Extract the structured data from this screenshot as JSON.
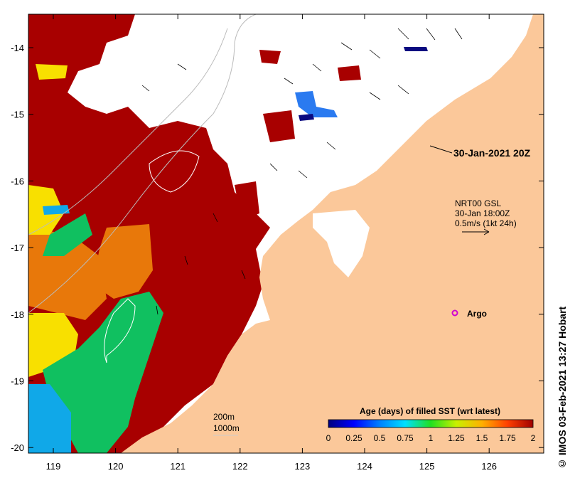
{
  "map": {
    "lon_ticks": [
      "119",
      "120",
      "121",
      "122",
      "123",
      "124",
      "125",
      "126"
    ],
    "lat_ticks": [
      "-14",
      "-15",
      "-16",
      "-17",
      "-18",
      "-19",
      "-20"
    ],
    "colors": {
      "land": "#fbc89a",
      "sst_old": "#a80000",
      "orange": "#e8780a",
      "yellow": "#f8e000",
      "green": "#10c060",
      "cyan": "#10a8e8",
      "navy": "#0a0a80",
      "lightblue": "#2a7af0"
    }
  },
  "annotations": {
    "timestamp": "30-Jan-2021 20Z",
    "current_product": "NRT00 GSL",
    "current_time": "30-Jan 18:00Z",
    "current_scale": "0.5m/s (1kt 24h)",
    "argo_label": "Argo",
    "depth_200": "200m",
    "depth_1000": "1000m"
  },
  "colorbar": {
    "title": "Age (days) of filled SST (wrt latest)",
    "ticks": [
      "0",
      "0.25",
      "0.5",
      "0.75",
      "1",
      "1.25",
      "1.5",
      "1.75",
      "2"
    ],
    "stops": [
      "#00007f",
      "#0000ff",
      "#0080ff",
      "#00e0ff",
      "#20e020",
      "#c8f000",
      "#ffb000",
      "#ff4000",
      "#a00000"
    ]
  },
  "credit": "© IMOS 03-Feb-2021 13:27 Hobart"
}
